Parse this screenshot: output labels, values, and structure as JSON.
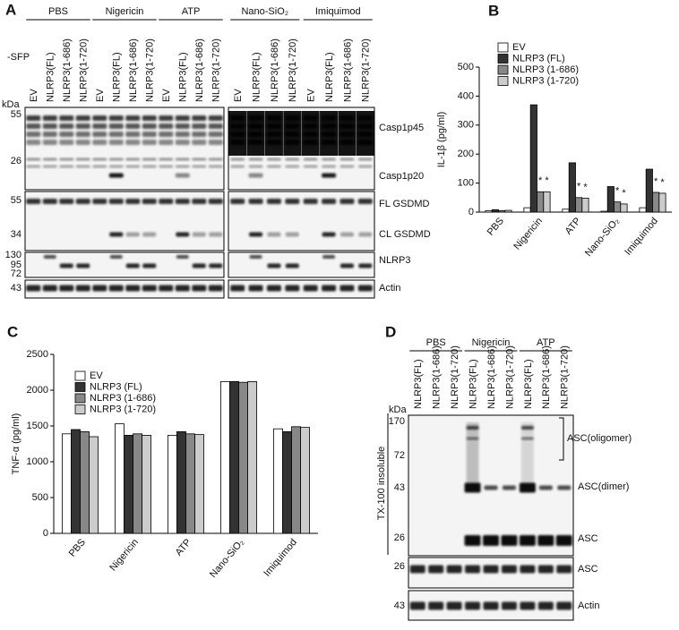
{
  "panel_a": {
    "letter": "A",
    "groups": [
      "PBS",
      "Nigericin",
      "ATP",
      "Nano-SiO₂",
      "Imiquimod"
    ],
    "lanes": [
      "EV",
      "NLRP3(FL)",
      "NLRP3(1-686)",
      "NLRP3(1-720)"
    ],
    "row_label": "-SFP",
    "kda": "kDa",
    "markers": [
      "55",
      "26",
      "55",
      "34",
      "130",
      "95",
      "72",
      "43"
    ],
    "bands": [
      "Casp1p45",
      "Casp1p20",
      "FL GSDMD",
      "CL GSDMD",
      "NLRP3",
      "Actin"
    ]
  },
  "panel_b": {
    "letter": "B",
    "chart_data": {
      "type": "bar",
      "ylabel": "IL-1β (pg/ml)",
      "categories": [
        "PBS",
        "Nigericin",
        "ATP",
        "Nano-SiO₂",
        "Imiquimod"
      ],
      "series": [
        {
          "name": "EV",
          "color": "#ffffff",
          "values": [
            5,
            15,
            10,
            3,
            15
          ]
        },
        {
          "name": "NLRP3 (FL)",
          "color": "#333333",
          "values": [
            8,
            370,
            170,
            88,
            148
          ]
        },
        {
          "name": "NLRP3 (1-686)",
          "color": "#888888",
          "values": [
            5,
            70,
            50,
            35,
            68
          ]
        },
        {
          "name": "NLRP3 (1-720)",
          "color": "#cccccc",
          "values": [
            6,
            70,
            48,
            28,
            65
          ]
        }
      ],
      "ylim": [
        0,
        500
      ],
      "yticks": [
        0,
        100,
        200,
        300,
        400,
        500
      ],
      "annotations": [
        {
          "text": "*",
          "category": 1,
          "series": 2
        },
        {
          "text": "*",
          "category": 1,
          "series": 3
        },
        {
          "text": "*",
          "category": 2,
          "series": 2
        },
        {
          "text": "*",
          "category": 2,
          "series": 3
        },
        {
          "text": "*",
          "category": 3,
          "series": 2
        },
        {
          "text": "*",
          "category": 3,
          "series": 3
        },
        {
          "text": "*",
          "category": 4,
          "series": 2
        },
        {
          "text": "*",
          "category": 4,
          "series": 3
        }
      ]
    }
  },
  "panel_c": {
    "letter": "C",
    "chart_data": {
      "type": "bar",
      "ylabel": "TNF-α (pg/ml)",
      "categories": [
        "PBS",
        "Nigericin",
        "ATP",
        "Nano-SiO₂",
        "Imiquimod"
      ],
      "series": [
        {
          "name": "EV",
          "color": "#ffffff",
          "values": [
            1390,
            1530,
            1370,
            2120,
            1460
          ]
        },
        {
          "name": "NLRP3 (FL)",
          "color": "#333333",
          "values": [
            1450,
            1370,
            1420,
            2120,
            1420
          ]
        },
        {
          "name": "NLRP3 (1-686)",
          "color": "#888888",
          "values": [
            1420,
            1390,
            1390,
            2110,
            1490
          ]
        },
        {
          "name": "NLRP3 (1-720)",
          "color": "#cccccc",
          "values": [
            1350,
            1370,
            1380,
            2120,
            1480
          ]
        }
      ],
      "ylim": [
        0,
        2500
      ],
      "yticks": [
        0,
        500,
        1000,
        1500,
        2000,
        2500
      ],
      "annotations": []
    }
  },
  "panel_d": {
    "letter": "D",
    "groups": [
      "PBS",
      "Nigericin",
      "ATP"
    ],
    "lanes": [
      "NLRP3(FL)",
      "NLRP3(1-686)",
      "NLRP3(1-720)"
    ],
    "kda": "kDa",
    "side_label": "TX-100 insoluble",
    "markers": [
      "170",
      "72",
      "43",
      "26",
      "26",
      "43"
    ],
    "bands": [
      "ASC(oligomer)",
      "ASC(dimer)",
      "ASC",
      "ASC",
      "Actin"
    ]
  }
}
